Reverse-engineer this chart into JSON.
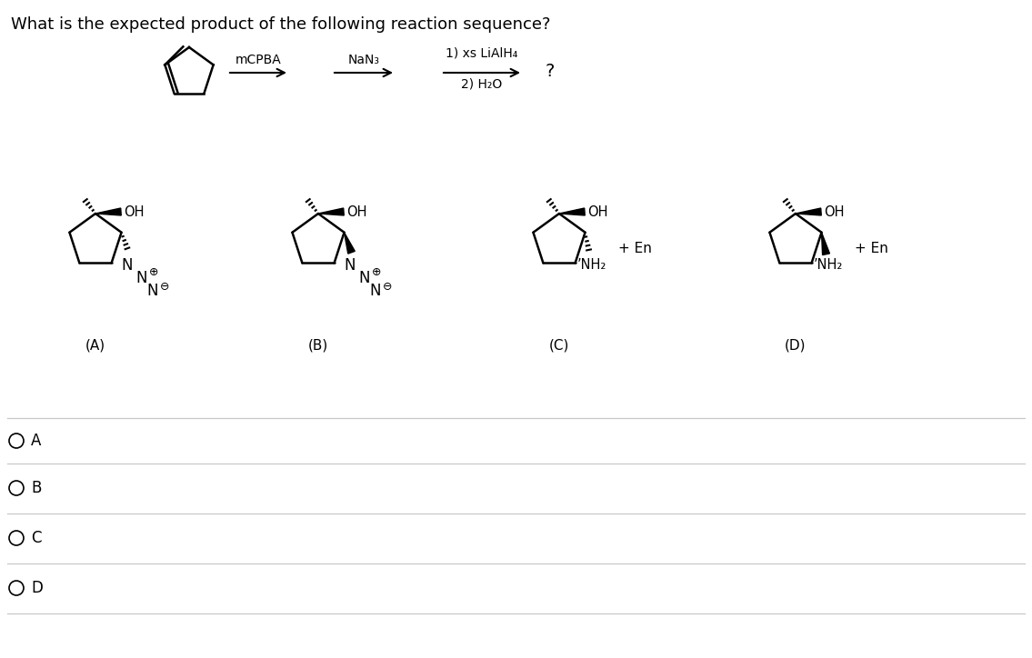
{
  "title": "What is the expected product of the following reaction sequence?",
  "bg": "#ffffff",
  "fg": "#000000",
  "choice_labels": [
    "(A)",
    "(B)",
    "(C)",
    "(D)"
  ],
  "reagent1": "mCPBA",
  "reagent2": "NaN₃",
  "reagent3a": "1) xs LiAlH₄",
  "reagent3b": "2) H₂O",
  "qmark": "?",
  "plus_en": "+ En",
  "OH": "OH",
  "NH2": "NH₂",
  "radio_labels": [
    "A",
    "B",
    "C",
    "D"
  ],
  "N_plus": "⊕",
  "N_minus": "⊖"
}
